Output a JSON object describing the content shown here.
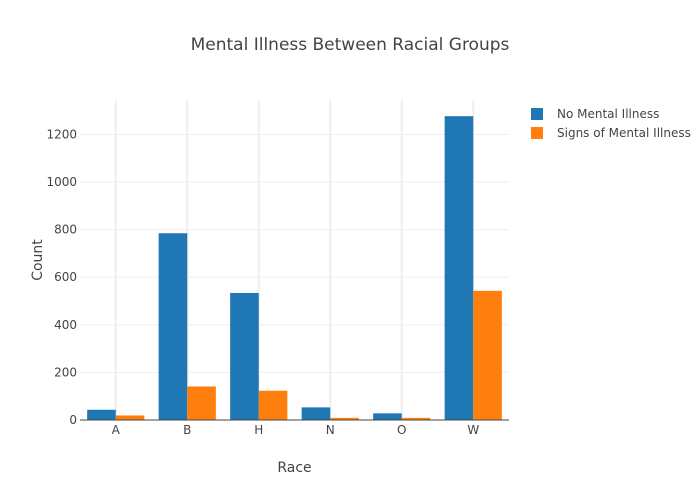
{
  "chart_data": {
    "type": "bar",
    "title": "Mental Illness Between Racial Groups",
    "xlabel": "Race",
    "ylabel": "Count",
    "categories": [
      "A",
      "B",
      "H",
      "N",
      "O",
      "W"
    ],
    "ylim": [
      0,
      1345
    ],
    "yticks": [
      0,
      200,
      400,
      600,
      800,
      1000,
      1200
    ],
    "grid": true,
    "legend_position": "top-right",
    "series": [
      {
        "name": "No Mental Illness",
        "color": "#1f77b4",
        "values": [
          43,
          785,
          534,
          53,
          28,
          1277
        ]
      },
      {
        "name": "Signs of Mental Illness",
        "color": "#ff7f0e",
        "values": [
          19,
          141,
          123,
          9,
          9,
          543
        ]
      }
    ]
  }
}
